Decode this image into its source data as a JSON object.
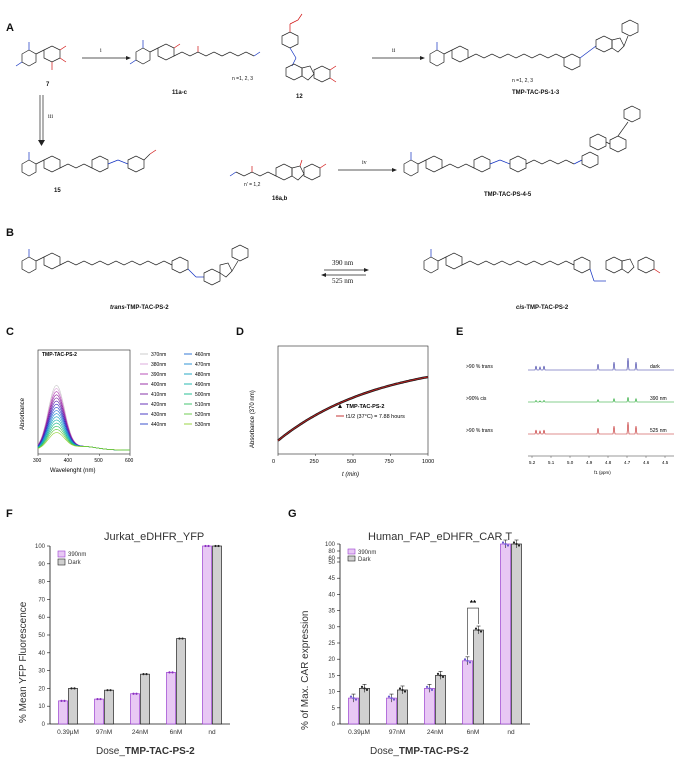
{
  "panels": {
    "A": "A",
    "B": "B",
    "C": "C",
    "D": "D",
    "E": "E",
    "F": "F",
    "G": "G"
  },
  "scheme_a": {
    "compound_7": "7",
    "compound_11": "11a-c",
    "compound_12": "12",
    "compound_15": "15",
    "compound_16": "16a,b",
    "product_1": "TMP-TAC-PS-1-3",
    "product_2": "TMP-TAC-PS-4-5",
    "n_note_1": "n =1, 2, 3",
    "n_note_2": "n =1, 2, 3",
    "n_note_3": "n' = 1,2",
    "reagent_i": "i",
    "reagent_ii": "ii",
    "reagent_iii": "iii",
    "reagent_iv": "iv"
  },
  "scheme_b": {
    "trans_label_prefix": "trans-",
    "trans_label_name": "TMP-TAC-PS-2",
    "cis_label_prefix": "cis-",
    "cis_label_name": "TMP-TAC-PS-2",
    "forward_wavelength": "390 nm",
    "reverse_wavelength": "525 nm"
  },
  "chart_c": {
    "title": "TMP-TAC-PS-2",
    "ylabel": "Absorbance",
    "xlabel": "Wavelenght (nm)",
    "xticks": [
      "300",
      "400",
      "500",
      "600"
    ],
    "legend": [
      {
        "name": "370nm",
        "color": "#c8c8c8"
      },
      {
        "name": "380nm",
        "color": "#d9a3d9"
      },
      {
        "name": "390nm",
        "color": "#b040b0"
      },
      {
        "name": "400nm",
        "color": "#9020a0"
      },
      {
        "name": "410nm",
        "color": "#7a1fa0"
      },
      {
        "name": "420nm",
        "color": "#5a1fb0"
      },
      {
        "name": "430nm",
        "color": "#3a2ac0"
      },
      {
        "name": "440nm",
        "color": "#2640c8"
      },
      {
        "name": "460nm",
        "color": "#1f6ad0"
      },
      {
        "name": "470nm",
        "color": "#1a8ad0"
      },
      {
        "name": "480nm",
        "color": "#12a0c0"
      },
      {
        "name": "490nm",
        "color": "#10b0a8"
      },
      {
        "name": "500nm",
        "color": "#10b888"
      },
      {
        "name": "510nm",
        "color": "#30c060"
      },
      {
        "name": "520nm",
        "color": "#60c840"
      },
      {
        "name": "530nm",
        "color": "#90d030"
      }
    ]
  },
  "chart_d": {
    "ylabel": "Absorbance (370 nm)",
    "xlabel": "t (min)",
    "xticks": [
      "0",
      "250",
      "500",
      "750",
      "1000"
    ],
    "legend_series": "TMP-TAC-PS-2",
    "legend_fit": "t1/2 (37°C) = 7.88 hours"
  },
  "panel_e": {
    "rows": [
      {
        "label": ">90 % trans",
        "condition": "dark",
        "color": "#3030a0"
      },
      {
        "label": ">90% cis",
        "condition": "390 nm",
        "color": "#10a020"
      },
      {
        "label": ">90 % trans",
        "condition": "525 nm",
        "color": "#c02020"
      }
    ],
    "xticks": [
      "5.2",
      "5.1",
      "5.0",
      "4.9",
      "4.8",
      "4.7",
      "4.6",
      "4.5"
    ],
    "xlabel": "f1 (ppm)"
  },
  "chart_data": [
    {
      "type": "bar",
      "title": "Jurkat_eDHFR_YFP",
      "ylabel": "% Mean YFP Fluorescence",
      "xlabel": "Dose_TMP-TAC-PS-2",
      "categories": [
        "0.39µM",
        "97nM",
        "24nM",
        "6nM",
        "nd"
      ],
      "ylim": [
        0,
        100
      ],
      "yticks": [
        "0",
        "10",
        "20",
        "30",
        "40",
        "50",
        "60",
        "70",
        "80",
        "90",
        "100"
      ],
      "series": [
        {
          "name": "390nm",
          "color": "#e8c8f4",
          "values": [
            13,
            14,
            17,
            29,
            100
          ]
        },
        {
          "name": "Dark",
          "color": "#d0d0d0",
          "values": [
            20,
            19,
            28,
            48,
            100
          ]
        }
      ]
    },
    {
      "type": "bar",
      "title": "Human_FAP_eDHFR_CAR T",
      "ylabel": "% of Max. CAR expression",
      "xlabel": "Dose_TMP-TAC-PS-2",
      "categories": [
        "0.39µM",
        "97nM",
        "24nM",
        "6nM",
        "nd"
      ],
      "yticks_low": [
        "0",
        "5",
        "10",
        "15",
        "20",
        "25",
        "30",
        "35",
        "40",
        "45",
        "50"
      ],
      "yticks_high": [
        "60",
        "80",
        "100"
      ],
      "series": [
        {
          "name": "390nm",
          "color": "#e8c8f4",
          "values": [
            8,
            8,
            11,
            19.5,
            100
          ]
        },
        {
          "name": "Dark",
          "color": "#d0d0d0",
          "values": [
            11,
            10.5,
            15,
            29,
            100
          ]
        }
      ],
      "annotation": "**"
    }
  ]
}
